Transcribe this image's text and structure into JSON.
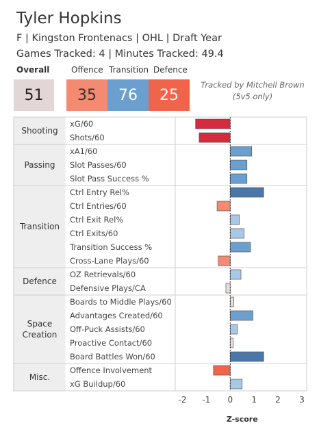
{
  "player": {
    "name": "Tyler Hopkins",
    "info": "F | Kingston Frontenacs | OHL | Draft Year",
    "tracked": "Games Tracked: 4 | Minutes Tracked: 49.4"
  },
  "summary": {
    "overall_label": "Overall",
    "overall_value": "51",
    "offence_label": "Offence",
    "offence_value": "35",
    "transition_label": "Transition",
    "transition_value": "76",
    "defence_label": "Defence",
    "defence_value": "25",
    "credit_line1": "Tracked by Mitchell Brown",
    "credit_line2": "(5v5 only)"
  },
  "colors": {
    "strong_blue": "#4a77a8",
    "mid_blue": "#6b9fd0",
    "pale_blue": "#a9c8e8",
    "strong_red": "#d42b3f",
    "mid_red": "#f0644a",
    "salmon": "#f58a72",
    "pale_red": "#f2c9c4",
    "neutral": "#e8dcdc"
  },
  "chart_data": {
    "type": "bar",
    "orientation": "horizontal",
    "xlabel": "Z-score",
    "xlim": [
      -2.3,
      3.2
    ],
    "xticks": [
      -2,
      -1,
      0,
      1,
      2,
      3
    ],
    "xtick_labels": [
      "-2",
      "-1",
      "0",
      "1",
      "2",
      "3"
    ],
    "groups": [
      {
        "name": "Shooting",
        "rows": [
          {
            "label": "xG/60",
            "value": -1.45,
            "color": "#d42b3f"
          },
          {
            "label": "Shots/60",
            "value": -1.3,
            "color": "#d42b3f"
          }
        ]
      },
      {
        "name": "Passing",
        "rows": [
          {
            "label": "xA1/60",
            "value": 0.9,
            "color": "#6b9fd0"
          },
          {
            "label": "Slot Passes/60",
            "value": 0.7,
            "color": "#6b9fd0"
          },
          {
            "label": "Slot Pass Success %",
            "value": 0.7,
            "color": "#6b9fd0"
          }
        ]
      },
      {
        "name": "Transition",
        "rows": [
          {
            "label": "Ctrl Entry Rel%",
            "value": 1.4,
            "color": "#4a77a8"
          },
          {
            "label": "Ctrl Entries/60",
            "value": -0.55,
            "color": "#f58a72"
          },
          {
            "label": "Ctrl Exit Rel%",
            "value": 0.38,
            "color": "#a9c8e8"
          },
          {
            "label": "Ctrl Exits/60",
            "value": 0.58,
            "color": "#a9c8e8"
          },
          {
            "label": "Transition Success %",
            "value": 0.85,
            "color": "#6b9fd0"
          },
          {
            "label": "Cross-Lane Plays/60",
            "value": -0.5,
            "color": "#f58a72"
          }
        ]
      },
      {
        "name": "Defence",
        "rows": [
          {
            "label": "OZ Retrievals/60",
            "value": 0.45,
            "color": "#a9c8e8"
          },
          {
            "label": "Defensive Plays/CA",
            "value": -0.18,
            "color": "#e8dcdc"
          }
        ]
      },
      {
        "name": "Space\nCreation",
        "rows": [
          {
            "label": "Boards to Middle Plays/60",
            "value": 0.15,
            "color": "#e8dcdc"
          },
          {
            "label": "Advantages Created/60",
            "value": 0.95,
            "color": "#6b9fd0"
          },
          {
            "label": "Off-Puck Assists/60",
            "value": 0.3,
            "color": "#a9c8e8"
          },
          {
            "label": "Proactive Contact/60",
            "value": 0.12,
            "color": "#e8dcdc"
          },
          {
            "label": "Board Battles Won/60",
            "value": 1.4,
            "color": "#4a77a8"
          }
        ]
      },
      {
        "name": "Misc.",
        "rows": [
          {
            "label": "Offence Involvement",
            "value": -0.7,
            "color": "#f0644a"
          },
          {
            "label": "xG Buildup/60",
            "value": 0.5,
            "color": "#a9c8e8"
          }
        ]
      }
    ]
  }
}
